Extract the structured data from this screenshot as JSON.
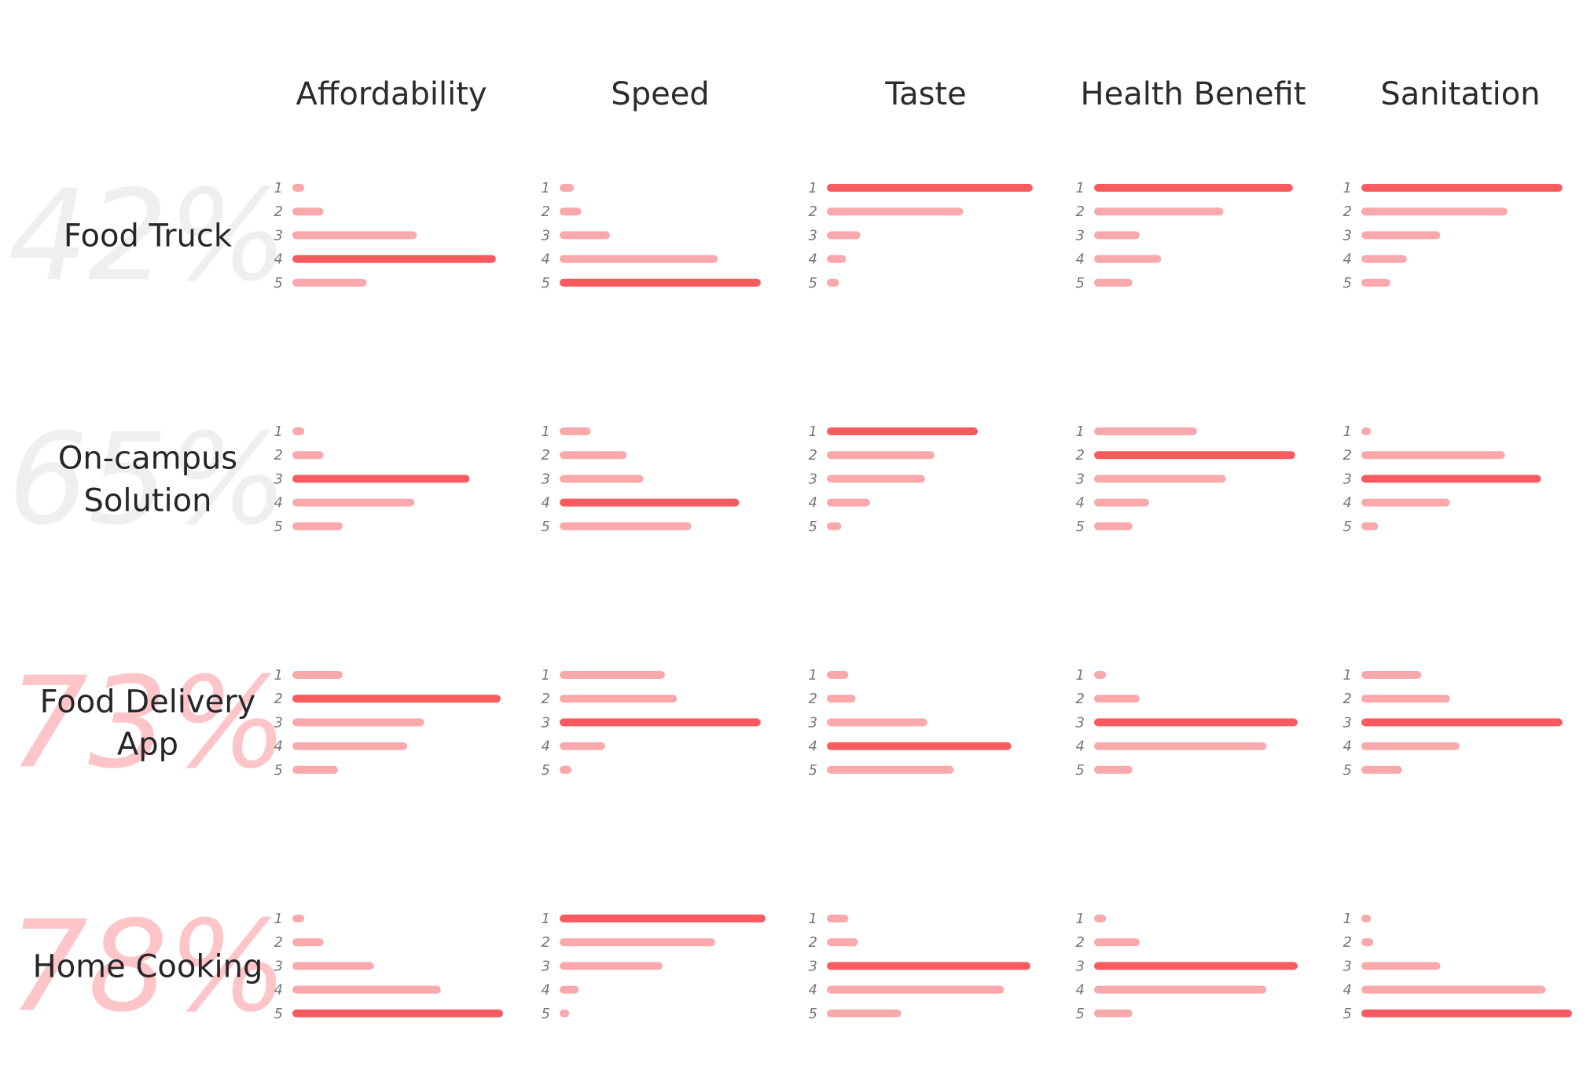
{
  "chart_data": {
    "type": "bar",
    "orientation": "horizontal",
    "columns": [
      "Affordability",
      "Speed",
      "Taste",
      "Health Benefit",
      "Sanitation"
    ],
    "rank_labels": [
      "1",
      "2",
      "3",
      "4",
      "5"
    ],
    "rows": [
      {
        "label": [
          "Food Truck"
        ],
        "percent": "42%",
        "percent_color": "#efefef",
        "values": [
          [
            5,
            13,
            52,
            85,
            31
          ],
          [
            6,
            9,
            21,
            66,
            84
          ],
          [
            86,
            57,
            14,
            8,
            5
          ],
          [
            83,
            54,
            19,
            28,
            16
          ],
          [
            84,
            61,
            33,
            19,
            12
          ]
        ]
      },
      {
        "label": [
          "On-campus",
          "Solution"
        ],
        "percent": "65%",
        "percent_color": "#efefef",
        "values": [
          [
            5,
            13,
            74,
            51,
            21
          ],
          [
            13,
            28,
            35,
            75,
            55
          ],
          [
            63,
            45,
            41,
            18,
            6
          ],
          [
            43,
            84,
            55,
            23,
            16
          ],
          [
            4,
            60,
            75,
            37,
            7
          ]
        ]
      },
      {
        "label": [
          "Food Delivery",
          "App"
        ],
        "percent": "73%",
        "percent_color": "#fdc5c7",
        "values": [
          [
            21,
            87,
            55,
            48,
            19
          ],
          [
            44,
            49,
            84,
            19,
            5
          ],
          [
            9,
            12,
            42,
            77,
            53
          ],
          [
            5,
            19,
            85,
            72,
            16
          ],
          [
            25,
            37,
            84,
            41,
            17
          ]
        ]
      },
      {
        "label": [
          "Home Cooking"
        ],
        "percent": "78%",
        "percent_color": "#fdc5c7",
        "values": [
          [
            5,
            13,
            34,
            62,
            88
          ],
          [
            86,
            65,
            43,
            8,
            4
          ],
          [
            9,
            13,
            85,
            74,
            31
          ],
          [
            5,
            19,
            85,
            72,
            16
          ],
          [
            4,
            5,
            33,
            77,
            88
          ]
        ]
      }
    ],
    "colors": {
      "highlight": "#f75a5f",
      "normal": "#f9a9ab"
    },
    "xlim": [
      0,
      88
    ]
  }
}
